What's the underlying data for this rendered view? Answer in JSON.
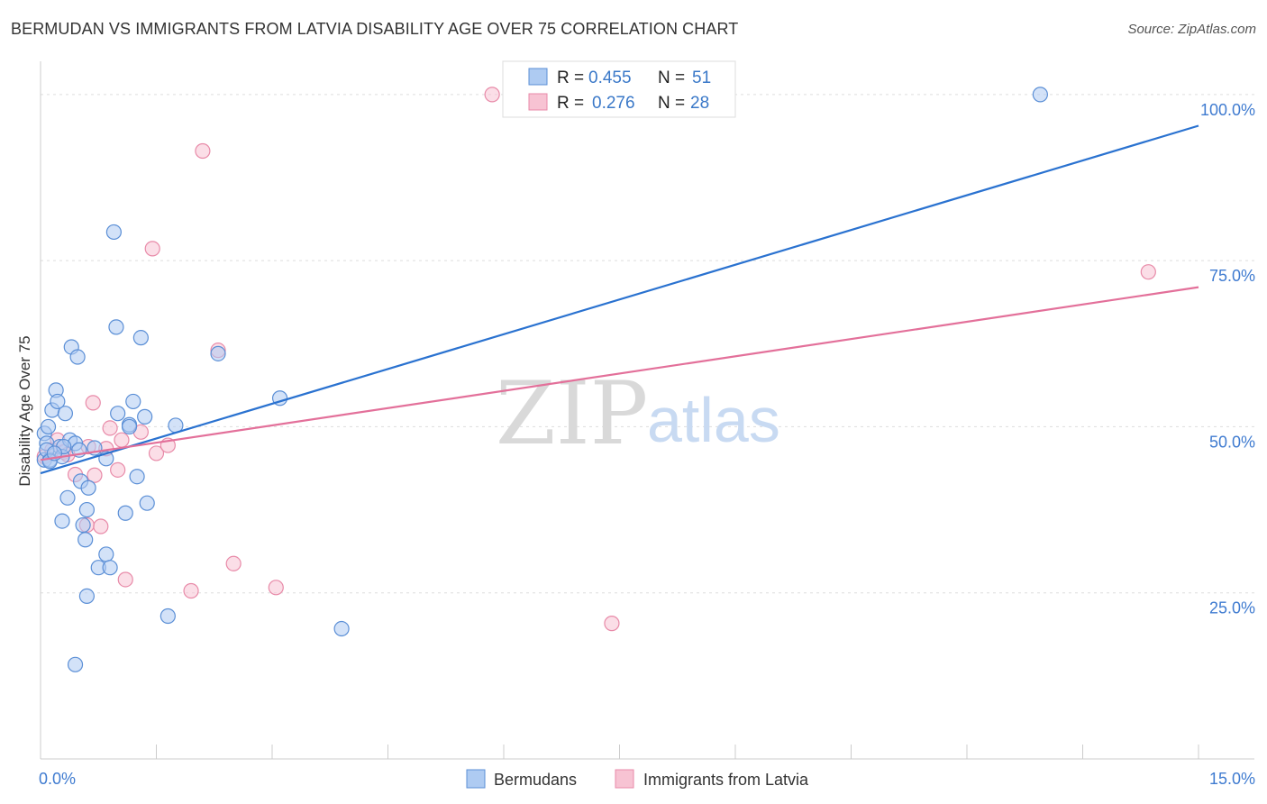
{
  "title": "BERMUDAN VS IMMIGRANTS FROM LATVIA DISABILITY AGE OVER 75 CORRELATION CHART",
  "source": "Source: ZipAtlas.com",
  "watermark": {
    "zip": "ZIP",
    "atlas": "atlas"
  },
  "stats_box": {
    "rows": [
      {
        "r_label": "R = ",
        "r_value": "0.455",
        "n_label": "N = ",
        "n_value": "51"
      },
      {
        "r_label": "R = ",
        "r_value": "0.276",
        "n_label": "N = ",
        "n_value": "28"
      }
    ]
  },
  "colors": {
    "blue_fill": "#aecbf2",
    "blue_stroke": "#5b8fd6",
    "blue_line": "#2a72d0",
    "pink_fill": "#f7c3d3",
    "pink_stroke": "#e88aa8",
    "pink_line": "#e3709a",
    "grid": "#dddddd",
    "axis": "#cccccc",
    "tick_text": "#3f7bd0"
  },
  "chart_data": {
    "type": "scatter",
    "title": "BERMUDAN VS IMMIGRANTS FROM LATVIA DISABILITY AGE OVER 75 CORRELATION CHART",
    "xlabel": "",
    "ylabel": "Disability Age Over 75",
    "xlim": [
      0,
      15
    ],
    "ylim": [
      0,
      105
    ],
    "x_tick_labels": [
      "0.0%",
      "15.0%"
    ],
    "y_ticks": [
      25,
      50,
      75,
      100
    ],
    "y_tick_labels": [
      "25.0%",
      "50.0%",
      "75.0%",
      "100.0%"
    ],
    "grid": true,
    "legend_position": "bottom-center",
    "series": [
      {
        "name": "Bermudans",
        "r": 0.455,
        "n": 51,
        "trend": {
          "x": [
            0,
            15
          ],
          "y": [
            43,
            95.3
          ]
        },
        "points": [
          [
            0.05,
            45
          ],
          [
            0.05,
            49
          ],
          [
            0.08,
            47.5
          ],
          [
            0.1,
            50
          ],
          [
            0.12,
            45
          ],
          [
            0.15,
            52.5
          ],
          [
            0.2,
            55.5
          ],
          [
            0.22,
            53.8
          ],
          [
            0.25,
            47
          ],
          [
            0.28,
            45.5
          ],
          [
            0.32,
            52
          ],
          [
            0.35,
            39.3
          ],
          [
            0.38,
            48
          ],
          [
            0.4,
            62
          ],
          [
            0.45,
            47.5
          ],
          [
            0.48,
            60.5
          ],
          [
            0.52,
            41.8
          ],
          [
            0.55,
            35.2
          ],
          [
            0.58,
            33
          ],
          [
            0.6,
            37.5
          ],
          [
            0.62,
            40.8
          ],
          [
            0.7,
            46.8
          ],
          [
            0.28,
            35.8
          ],
          [
            0.6,
            24.5
          ],
          [
            0.85,
            45.2
          ],
          [
            0.95,
            79.3
          ],
          [
            0.98,
            65
          ],
          [
            1.0,
            52
          ],
          [
            1.1,
            37
          ],
          [
            1.15,
            50.3
          ],
          [
            1.15,
            50
          ],
          [
            1.2,
            53.8
          ],
          [
            1.25,
            42.5
          ],
          [
            1.3,
            63.4
          ],
          [
            1.35,
            51.5
          ],
          [
            1.38,
            38.5
          ],
          [
            0.85,
            30.8
          ],
          [
            0.75,
            28.8
          ],
          [
            0.9,
            28.8
          ],
          [
            1.65,
            21.5
          ],
          [
            1.75,
            50.2
          ],
          [
            2.3,
            61
          ],
          [
            3.1,
            54.3
          ],
          [
            3.9,
            19.6
          ],
          [
            0.45,
            14.2
          ],
          [
            12.95,
            100
          ],
          [
            0.08,
            46.5
          ],
          [
            0.12,
            44.8
          ],
          [
            0.3,
            47
          ],
          [
            0.5,
            46.5
          ],
          [
            0.18,
            46
          ]
        ]
      },
      {
        "name": "Immigrants from Latvia",
        "r": 0.276,
        "n": 28,
        "trend": {
          "x": [
            0,
            15
          ],
          "y": [
            45,
            71
          ]
        },
        "points": [
          [
            0.05,
            45.5
          ],
          [
            0.15,
            46.5
          ],
          [
            0.22,
            48
          ],
          [
            0.3,
            46.2
          ],
          [
            0.35,
            45.8
          ],
          [
            0.45,
            42.8
          ],
          [
            0.6,
            35.2
          ],
          [
            0.62,
            47
          ],
          [
            0.68,
            53.6
          ],
          [
            0.7,
            42.7
          ],
          [
            0.78,
            35
          ],
          [
            0.85,
            46.7
          ],
          [
            0.9,
            49.8
          ],
          [
            1.0,
            43.5
          ],
          [
            1.05,
            48
          ],
          [
            1.1,
            27
          ],
          [
            1.3,
            49.2
          ],
          [
            1.45,
            76.8
          ],
          [
            1.5,
            46
          ],
          [
            1.65,
            47.2
          ],
          [
            1.95,
            25.3
          ],
          [
            2.1,
            91.5
          ],
          [
            2.3,
            61.5
          ],
          [
            2.5,
            29.4
          ],
          [
            3.05,
            25.8
          ],
          [
            5.85,
            100
          ],
          [
            7.4,
            20.4
          ],
          [
            14.35,
            73.3
          ]
        ]
      }
    ]
  },
  "legend": {
    "items": [
      {
        "label": "Bermudans"
      },
      {
        "label": "Immigrants from Latvia"
      }
    ]
  }
}
